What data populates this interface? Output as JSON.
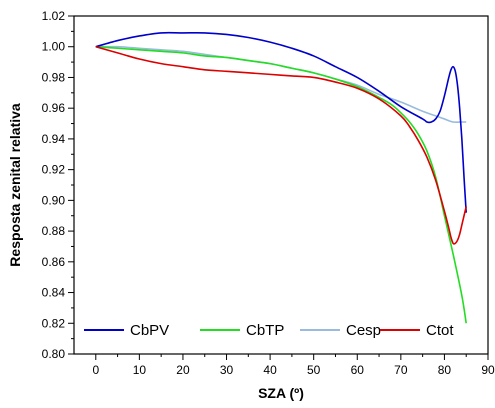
{
  "chart_data": {
    "type": "line",
    "title": "",
    "xlabel": "SZA (º)",
    "ylabel": "Resposta zenital relativa",
    "xlim": [
      -5,
      90
    ],
    "ylim": [
      0.8,
      1.02
    ],
    "x_ticks": [
      0,
      10,
      20,
      30,
      40,
      50,
      60,
      70,
      80,
      90
    ],
    "y_ticks": [
      0.8,
      0.82,
      0.84,
      0.86,
      0.88,
      0.9,
      0.92,
      0.94,
      0.96,
      0.98,
      1.0,
      1.02
    ],
    "x_tick_labels": [
      "0",
      "10",
      "20",
      "30",
      "40",
      "50",
      "60",
      "70",
      "80",
      "90"
    ],
    "y_tick_labels": [
      "0.80",
      "0.82",
      "0.84",
      "0.86",
      "0.88",
      "0.90",
      "0.92",
      "0.94",
      "0.96",
      "0.98",
      "1.00",
      "1.02"
    ],
    "grid": false,
    "legend_position": "bottom",
    "series": [
      {
        "name": "CbPV",
        "color": "#0000cc",
        "x": [
          0,
          5,
          10,
          15,
          20,
          25,
          30,
          35,
          40,
          45,
          50,
          55,
          60,
          65,
          70,
          75,
          76,
          77,
          78,
          79,
          80,
          81,
          81.5,
          82,
          82.5,
          83,
          83.5,
          84,
          84.5,
          85
        ],
        "y": [
          1.0,
          1.004,
          1.007,
          1.009,
          1.009,
          1.009,
          1.008,
          1.006,
          1.003,
          0.999,
          0.994,
          0.987,
          0.98,
          0.971,
          0.961,
          0.953,
          0.951,
          0.951,
          0.953,
          0.958,
          0.968,
          0.98,
          0.985,
          0.987,
          0.984,
          0.975,
          0.96,
          0.94,
          0.915,
          0.892
        ]
      },
      {
        "name": "CbTP",
        "color": "#22dd22",
        "x": [
          0,
          5,
          10,
          15,
          20,
          25,
          30,
          35,
          40,
          45,
          50,
          55,
          60,
          65,
          68,
          70,
          72,
          74,
          76,
          78,
          80,
          82,
          84,
          85
        ],
        "y": [
          1.0,
          0.999,
          0.998,
          0.997,
          0.996,
          0.994,
          0.993,
          0.991,
          0.989,
          0.986,
          0.983,
          0.979,
          0.974,
          0.967,
          0.962,
          0.957,
          0.951,
          0.943,
          0.932,
          0.915,
          0.89,
          0.865,
          0.838,
          0.82
        ]
      },
      {
        "name": "Cesp",
        "color": "#99bbdd",
        "x": [
          0,
          5,
          10,
          15,
          20,
          25,
          30,
          35,
          40,
          45,
          50,
          55,
          60,
          65,
          70,
          75,
          78,
          80,
          82,
          84,
          85
        ],
        "y": [
          1.0,
          1.0,
          0.999,
          0.998,
          0.997,
          0.995,
          0.993,
          0.991,
          0.989,
          0.986,
          0.983,
          0.979,
          0.975,
          0.969,
          0.964,
          0.958,
          0.955,
          0.953,
          0.951,
          0.951,
          0.951
        ]
      },
      {
        "name": "Ctot",
        "color": "#dd0000",
        "x": [
          0,
          5,
          10,
          15,
          20,
          25,
          30,
          35,
          40,
          45,
          50,
          55,
          60,
          65,
          70,
          72,
          74,
          76,
          78,
          80,
          81,
          81.5,
          82,
          82.5,
          83,
          83.5,
          84,
          84.5,
          85
        ],
        "y": [
          1.0,
          0.996,
          0.992,
          0.989,
          0.987,
          0.985,
          0.984,
          0.983,
          0.982,
          0.981,
          0.98,
          0.977,
          0.973,
          0.966,
          0.955,
          0.948,
          0.939,
          0.928,
          0.913,
          0.893,
          0.882,
          0.876,
          0.872,
          0.872,
          0.874,
          0.878,
          0.884,
          0.89,
          0.896
        ]
      }
    ]
  }
}
